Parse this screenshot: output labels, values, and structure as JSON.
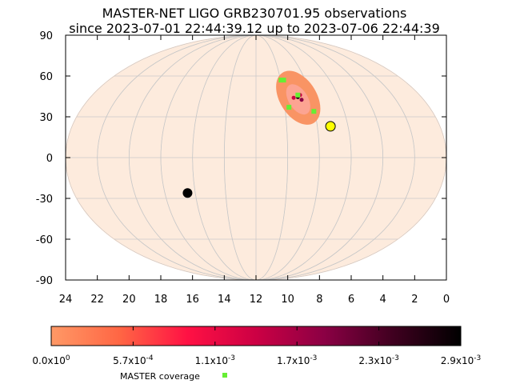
{
  "chart_data": {
    "type": "scatter",
    "title": "MASTER-NET LIGO GRB230701.95 observations",
    "subtitle": "since 2023-07-01 22:44:39.12 up to 2023-07-06 22:44:39",
    "projection": "aitoff",
    "x_axis": {
      "min": 0,
      "max": 24,
      "reversed": true,
      "ticks": [
        24,
        22,
        20,
        18,
        16,
        14,
        12,
        10,
        8,
        6,
        4,
        2,
        0
      ]
    },
    "y_axis": {
      "min": -90,
      "max": 90,
      "ticks": [
        90,
        60,
        30,
        0,
        -30,
        -60,
        -90
      ]
    },
    "colors": {
      "map_fill": "#fdebdd",
      "region_fill": "#f99464",
      "coverage": "#66ee33",
      "sun": "#ffff00",
      "moon": "#000000",
      "grid": "#c8c8c8"
    },
    "probability_region": {
      "ra_center": 8.3,
      "dec_center": 44
    },
    "hot_spots": [
      {
        "ra": 8.3,
        "dec": 44.5,
        "color": "#1a0010"
      },
      {
        "ra": 8.7,
        "dec": 44,
        "color": "#cc0044"
      },
      {
        "ra": 8.0,
        "dec": 46,
        "color": "#cc0044"
      },
      {
        "ra": 8.1,
        "dec": 42.5,
        "color": "#8b0044"
      }
    ],
    "master_coverage": [
      {
        "ra": 9.1,
        "dec": 57
      },
      {
        "ra": 8.8,
        "dec": 57
      },
      {
        "ra": 9.4,
        "dec": 37
      },
      {
        "ra": 7.6,
        "dec": 34
      },
      {
        "ra": 8.2,
        "dec": 46
      }
    ],
    "sun": {
      "ra": 6.9,
      "dec": 23
    },
    "moon": {
      "ra": 16.8,
      "dec": -26
    },
    "colorbar": {
      "min": 0,
      "max": 0.0029,
      "ticks": [
        "0.0x10^0",
        "5.7x10^-4",
        "1.1x10^-3",
        "1.7x10^-3",
        "2.3x10^-3",
        "2.9x10^-3"
      ],
      "stops": [
        "#ff9966",
        "#ff6644",
        "#ff1144",
        "#cc0044",
        "#8b0044",
        "#400020",
        "#000000"
      ]
    },
    "legend": {
      "label": "MASTER coverage",
      "position": "bottom"
    }
  }
}
